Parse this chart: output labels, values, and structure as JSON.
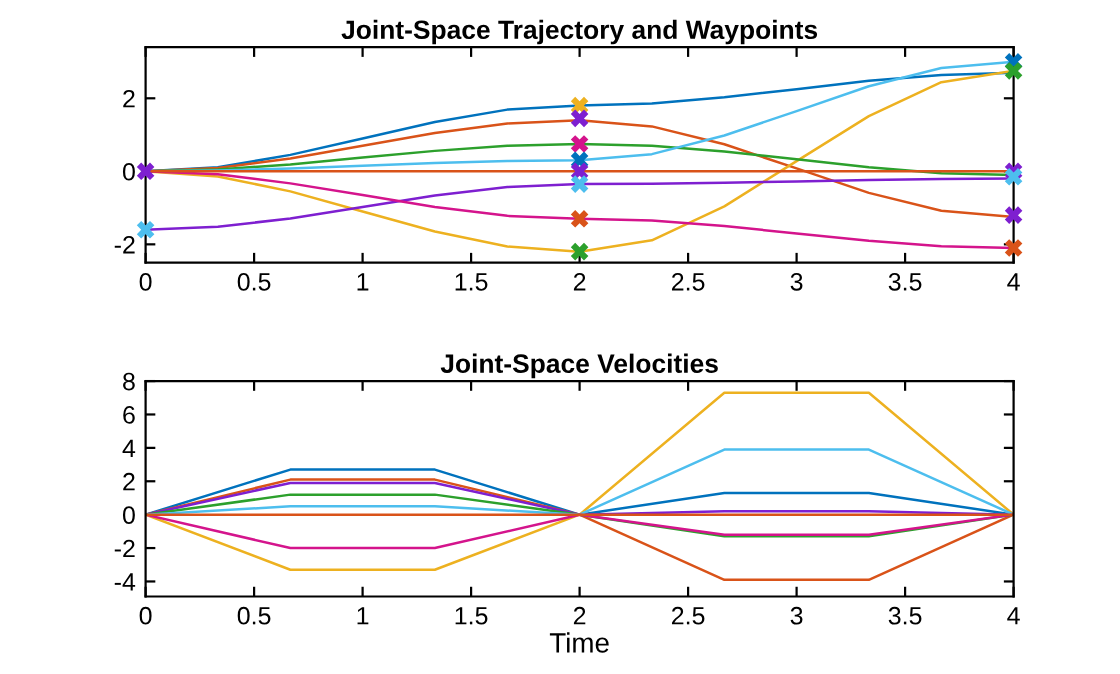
{
  "chart_data": [
    {
      "type": "line",
      "title": "Joint-Space Trajectory and Waypoints",
      "x": [
        0,
        0.333,
        0.667,
        1,
        1.333,
        1.667,
        2,
        2.333,
        2.667,
        3,
        3.333,
        3.667,
        4
      ],
      "xlim": [
        0,
        4
      ],
      "xticks": [
        0,
        0.5,
        1,
        1.5,
        2,
        2.5,
        3,
        3.5,
        4
      ],
      "ylim": [
        -2.5,
        3.4
      ],
      "yticks": [
        -2,
        0,
        2
      ],
      "series": [
        {
          "color": "#0072bd",
          "values": [
            0,
            0.11,
            0.45,
            0.9,
            1.35,
            1.69,
            1.8,
            1.86,
            2.03,
            2.25,
            2.48,
            2.64,
            2.7
          ]
        },
        {
          "color": "#d95319",
          "values": [
            0,
            0.09,
            0.35,
            0.7,
            1.05,
            1.31,
            1.4,
            1.23,
            0.74,
            0.08,
            -0.59,
            -1.08,
            -1.25
          ]
        },
        {
          "color": "#edb120",
          "values": [
            0,
            -0.14,
            -0.55,
            -1.1,
            -1.65,
            -2.06,
            -2.2,
            -1.89,
            -0.96,
            0.28,
            1.51,
            2.44,
            2.75
          ]
        },
        {
          "color": "#7e1fd0",
          "values": [
            -1.6,
            -1.52,
            -1.29,
            -0.98,
            -0.66,
            -0.43,
            -0.35,
            -0.34,
            -0.31,
            -0.28,
            -0.24,
            -0.21,
            -0.2
          ]
        },
        {
          "color": "#2ca02c",
          "values": [
            0,
            0.05,
            0.19,
            0.38,
            0.56,
            0.7,
            0.75,
            0.7,
            0.54,
            0.33,
            0.11,
            -0.05,
            -0.1
          ]
        },
        {
          "color": "#4dbeee",
          "values": [
            0,
            0.02,
            0.08,
            0.15,
            0.23,
            0.28,
            0.3,
            0.47,
            0.98,
            1.65,
            2.33,
            2.83,
            3.0
          ]
        },
        {
          "color": "#d4148c",
          "values": [
            0,
            -0.08,
            -0.33,
            -0.65,
            -0.98,
            -1.22,
            -1.3,
            -1.35,
            -1.5,
            -1.7,
            -1.9,
            -2.05,
            -2.1
          ]
        },
        {
          "color": "#d95319",
          "values": [
            0,
            0,
            0,
            0,
            0,
            0,
            0,
            0,
            0,
            0,
            0,
            0,
            0
          ]
        },
        {
          "type": "scatter",
          "marker": "cross",
          "x": [
            0,
            0,
            2,
            2,
            2,
            2,
            2,
            2,
            2,
            2,
            4,
            4,
            4,
            4,
            4,
            4
          ],
          "values": [
            0,
            -1.6,
            1.8,
            1.45,
            0.75,
            0.3,
            0,
            -0.35,
            -1.3,
            -2.2,
            3.0,
            2.75,
            0,
            -0.15,
            -1.2,
            -2.1
          ],
          "colors": [
            "#7e1fd0",
            "#4dbeee",
            "#edb120",
            "#7e1fd0",
            "#d4148c",
            "#0072bd",
            "#7e1fd0",
            "#4dbeee",
            "#d95319",
            "#2ca02c",
            "#0072bd",
            "#2ca02c",
            "#7e1fd0",
            "#4dbeee",
            "#7e1fd0",
            "#d95319"
          ]
        }
      ]
    },
    {
      "type": "line",
      "title": "Joint-Space Velocities",
      "xlabel": "Time",
      "x": [
        0,
        0.667,
        1.333,
        2,
        2.667,
        3.333,
        4
      ],
      "xlim": [
        0,
        4
      ],
      "xticks": [
        0,
        0.5,
        1,
        1.5,
        2,
        2.5,
        3,
        3.5,
        4
      ],
      "ylim": [
        -4.9,
        8
      ],
      "yticks": [
        -4,
        -2,
        0,
        2,
        4,
        6,
        8
      ],
      "series": [
        {
          "color": "#0072bd",
          "values": [
            0,
            2.7,
            2.7,
            0,
            1.3,
            1.3,
            0
          ]
        },
        {
          "color": "#d95319",
          "values": [
            0,
            2.1,
            2.1,
            0,
            -3.9,
            -3.9,
            0
          ]
        },
        {
          "color": "#edb120",
          "values": [
            0,
            -3.3,
            -3.3,
            0,
            7.3,
            7.3,
            0
          ]
        },
        {
          "color": "#7e1fd0",
          "values": [
            0,
            1.9,
            1.9,
            0,
            0.2,
            0.2,
            0
          ]
        },
        {
          "color": "#2ca02c",
          "values": [
            0,
            1.2,
            1.2,
            0,
            -1.3,
            -1.3,
            0
          ]
        },
        {
          "color": "#4dbeee",
          "values": [
            0,
            0.5,
            0.5,
            0,
            3.9,
            3.9,
            0
          ]
        },
        {
          "color": "#d4148c",
          "values": [
            0,
            -2.0,
            -2.0,
            0,
            -1.2,
            -1.2,
            0
          ]
        },
        {
          "color": "#d95319",
          "values": [
            0,
            0,
            0,
            0,
            0,
            0,
            0
          ]
        }
      ]
    }
  ]
}
